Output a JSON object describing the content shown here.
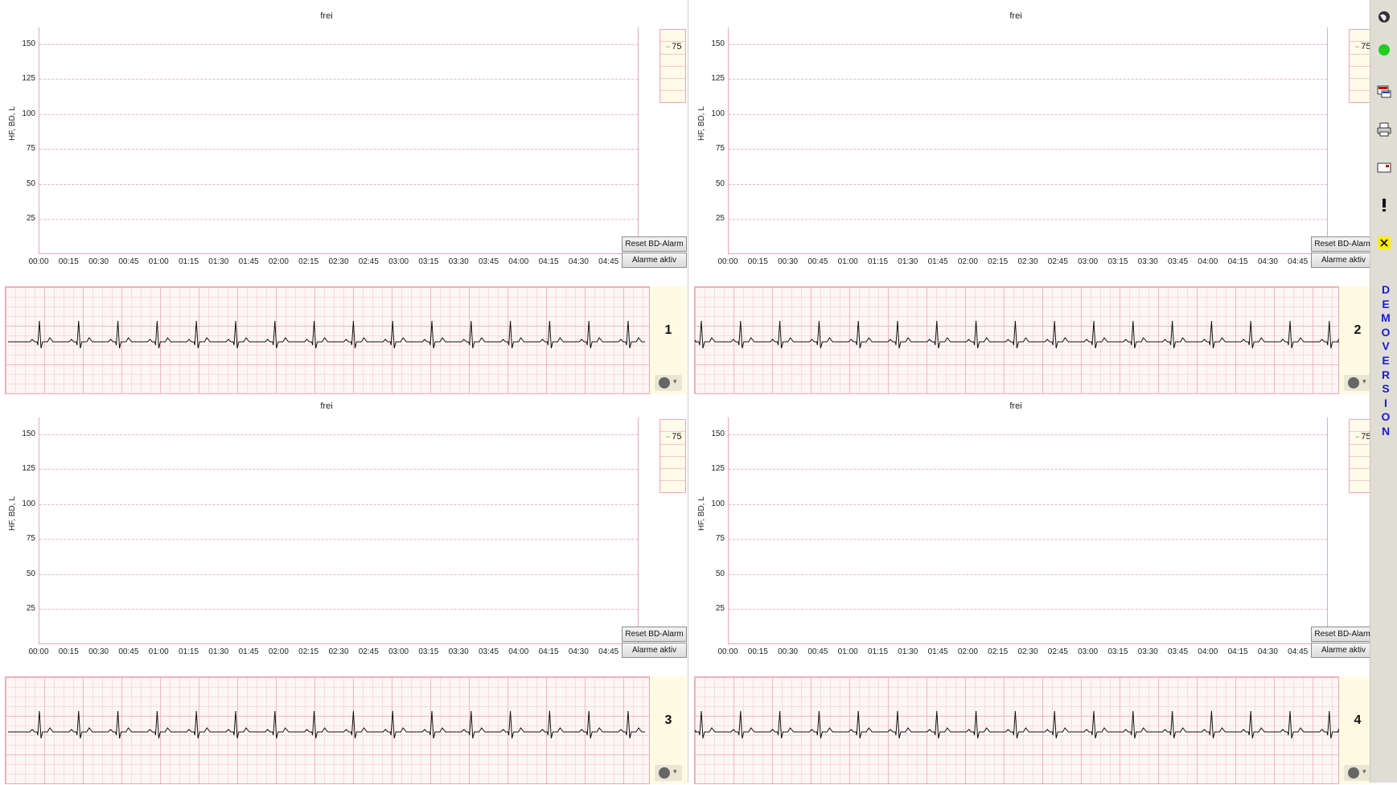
{
  "panels": [
    {
      "title": "frei",
      "ylabel": "HF, BD, L",
      "scale_value": "75",
      "buttons": {
        "reset": "Reset BD-Alarm",
        "alarm": "Alarme aktiv"
      },
      "channel_number": "1"
    },
    {
      "title": "frei",
      "ylabel": "HF, BD, L",
      "scale_value": "75",
      "buttons": {
        "reset": "Reset BD-Alarm",
        "alarm": "Alarme aktiv"
      },
      "channel_number": "2"
    },
    {
      "title": "frei",
      "ylabel": "HF, BD, L",
      "scale_value": "75",
      "buttons": {
        "reset": "Reset BD-Alarm",
        "alarm": "Alarme aktiv"
      },
      "channel_number": "3"
    },
    {
      "title": "frei",
      "ylabel": "HF, BD, L",
      "scale_value": "75",
      "buttons": {
        "reset": "Reset BD-Alarm",
        "alarm": "Alarme aktiv"
      },
      "channel_number": "4"
    }
  ],
  "y_ticks": [
    "150",
    "125",
    "100",
    "75",
    "50",
    "25"
  ],
  "x_ticks": [
    "00:00",
    "00:15",
    "00:30",
    "00:45",
    "01:00",
    "01:15",
    "01:30",
    "01:45",
    "02:00",
    "02:15",
    "02:30",
    "02:45",
    "03:00",
    "03:15",
    "03:30",
    "03:45",
    "04:00",
    "04:15",
    "04:30",
    "04:45"
  ],
  "toolbar": {
    "icons": [
      "globe-icon",
      "status-green-icon",
      "monitor-icon",
      "printer-icon",
      "window-icon",
      "alert-icon",
      "close-icon"
    ],
    "status_color": "#22cc22",
    "close_highlight": "#ffee00",
    "demo_label": [
      "D",
      "E",
      "M",
      "O",
      "V",
      "E",
      "R",
      "S",
      "I",
      "O",
      "N"
    ]
  },
  "colors": {
    "grid": "#f0a6b4",
    "ecg_trace": "#111111",
    "demo_text": "#1a1ad8"
  }
}
